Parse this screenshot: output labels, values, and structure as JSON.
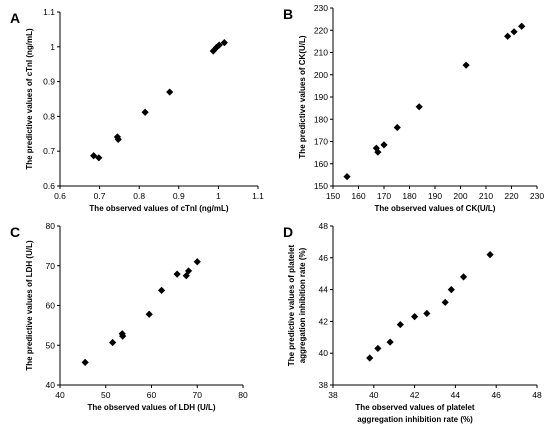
{
  "chart_data": [
    {
      "panel": "A",
      "type": "scatter",
      "xlabel": "The observed values of cTnI (ng/mL)",
      "ylabel": [
        "The predictive values of cTnI (ng/mL)"
      ],
      "xlim": [
        0.6,
        1.1
      ],
      "ylim": [
        0.6,
        1.1
      ],
      "xticks": [
        "0.6",
        "0.7",
        "0.8",
        "0.9",
        "1",
        "1.1"
      ],
      "yticks": [
        "0.6",
        "0.7",
        "0.8",
        "0.9",
        "1",
        "1.1"
      ],
      "points": [
        {
          "x": 0.685,
          "y": 0.687
        },
        {
          "x": 0.698,
          "y": 0.681
        },
        {
          "x": 0.745,
          "y": 0.741
        },
        {
          "x": 0.747,
          "y": 0.734
        },
        {
          "x": 0.815,
          "y": 0.812
        },
        {
          "x": 0.877,
          "y": 0.87
        },
        {
          "x": 0.987,
          "y": 0.988
        },
        {
          "x": 0.995,
          "y": 0.998
        },
        {
          "x": 1.002,
          "y": 1.005
        },
        {
          "x": 1.015,
          "y": 1.012
        }
      ]
    },
    {
      "panel": "B",
      "type": "scatter",
      "xlabel": "The observed values of CK(U/L)",
      "ylabel": [
        "The predictive values of CK(U/L)"
      ],
      "xlim": [
        150,
        230
      ],
      "ylim": [
        150,
        230
      ],
      "xticks": [
        "150",
        "160",
        "170",
        "180",
        "190",
        "200",
        "210",
        "220",
        "230"
      ],
      "yticks": [
        "150",
        "160",
        "170",
        "180",
        "190",
        "200",
        "210",
        "220",
        "230"
      ],
      "points": [
        {
          "x": 155.5,
          "y": 154.2
        },
        {
          "x": 167.0,
          "y": 167.0
        },
        {
          "x": 167.6,
          "y": 165.2
        },
        {
          "x": 170.0,
          "y": 168.5
        },
        {
          "x": 175.2,
          "y": 176.3
        },
        {
          "x": 183.8,
          "y": 185.6
        },
        {
          "x": 202.2,
          "y": 204.3
        },
        {
          "x": 218.5,
          "y": 217.3
        },
        {
          "x": 221.0,
          "y": 219.3
        },
        {
          "x": 224.0,
          "y": 221.8
        }
      ]
    },
    {
      "panel": "C",
      "type": "scatter",
      "xlabel": "The observed values of LDH (U/L)",
      "ylabel": [
        "The predictive values of LDH (U/L)"
      ],
      "xlim": [
        40,
        80
      ],
      "ylim": [
        40,
        80
      ],
      "xticks": [
        "40",
        "50",
        "60",
        "70",
        "80"
      ],
      "yticks": [
        "40",
        "50",
        "60",
        "70",
        "80"
      ],
      "points": [
        {
          "x": 45.5,
          "y": 45.7
        },
        {
          "x": 51.5,
          "y": 50.7
        },
        {
          "x": 53.6,
          "y": 52.9
        },
        {
          "x": 53.7,
          "y": 52.3
        },
        {
          "x": 59.5,
          "y": 57.8
        },
        {
          "x": 62.2,
          "y": 63.8
        },
        {
          "x": 65.6,
          "y": 67.9
        },
        {
          "x": 67.6,
          "y": 67.5
        },
        {
          "x": 68.1,
          "y": 68.7
        },
        {
          "x": 70.0,
          "y": 71.0
        }
      ]
    },
    {
      "panel": "D",
      "type": "scatter",
      "xlabel": [
        "The observed values of platelet",
        "aggregation inhibition rate (%)"
      ],
      "ylabel": [
        "The predictive values of platelet",
        "aggregation inhibition rate (%)"
      ],
      "xlim": [
        38,
        48
      ],
      "ylim": [
        38,
        48
      ],
      "xticks": [
        "38",
        "40",
        "42",
        "44",
        "46",
        "48"
      ],
      "yticks": [
        "38",
        "40",
        "42",
        "44",
        "46",
        "48"
      ],
      "points": [
        {
          "x": 39.8,
          "y": 39.7
        },
        {
          "x": 40.2,
          "y": 40.3
        },
        {
          "x": 40.8,
          "y": 40.7
        },
        {
          "x": 41.3,
          "y": 41.8
        },
        {
          "x": 42.0,
          "y": 42.3
        },
        {
          "x": 42.6,
          "y": 42.5
        },
        {
          "x": 43.5,
          "y": 43.2
        },
        {
          "x": 43.8,
          "y": 44.0
        },
        {
          "x": 44.4,
          "y": 44.8
        },
        {
          "x": 45.7,
          "y": 46.2
        }
      ]
    }
  ]
}
